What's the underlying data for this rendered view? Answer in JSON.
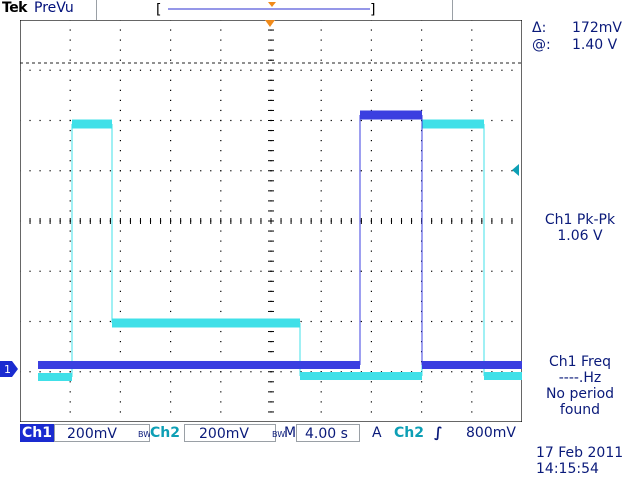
{
  "header": {
    "brand": "Tek",
    "acq_status": "PreVu"
  },
  "cursor_readout": {
    "delta_label": "Δ:",
    "delta_value": "172mV",
    "at_label": "@:",
    "at_value": "1.40 V"
  },
  "measurements": [
    {
      "name": "Ch1 Pk-Pk",
      "value": "1.06 V"
    },
    {
      "name": "Ch1 Freq",
      "value": "----.Hz",
      "note": "No period found"
    }
  ],
  "channel_marker": "1",
  "bottom": {
    "ch1_label": "Ch1",
    "ch1_scale": "200mV",
    "ch2_label": "Ch2",
    "ch2_scale": "200mV",
    "bw_mark": "BW",
    "time_label": "M",
    "time_scale": "4.00 s",
    "trigger_label": "A",
    "trigger_source": "Ch2",
    "trigger_slope": "∫",
    "trigger_level": "800mV"
  },
  "datetime": {
    "date": "17 Feb  2011",
    "time": "14:15:54"
  },
  "colors": {
    "ch1": "#3b3fe0",
    "ch2": "#40e0e8",
    "graticule": "#000000",
    "trigger_marker": "#f08a1a",
    "text": "#0a1a7a"
  }
}
